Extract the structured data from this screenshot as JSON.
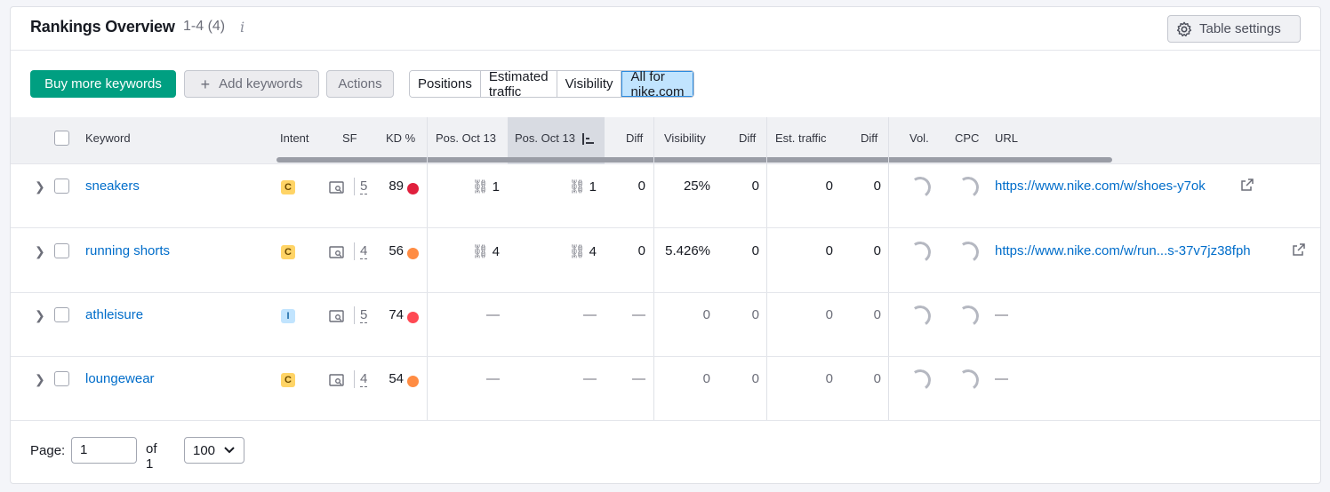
{
  "header": {
    "title": "Rankings Overview",
    "count": "1-4 (4)",
    "info": "i",
    "table_settings": "Table settings"
  },
  "toolbar": {
    "buy_more": "Buy more keywords",
    "add_keywords": "Add keywords",
    "actions": "Actions",
    "segments": [
      "Positions",
      "Estimated traffic",
      "Visibility",
      "All for nike.com"
    ],
    "active_segment": "All for nike.com"
  },
  "columns": {
    "keyword": "Keyword",
    "intent": "Intent",
    "sf": "SF",
    "kd": "KD %",
    "pos1": "Pos. Oct 13",
    "pos2": "Pos. Oct 13",
    "diff1": "Diff",
    "visibility": "Visibility",
    "diff2": "Diff",
    "est_traffic": "Est. traffic",
    "diff3": "Diff",
    "vol": "Vol.",
    "cpc": "CPC",
    "url": "URL"
  },
  "rows": [
    {
      "keyword": "sneakers",
      "intent": "C",
      "sf": "5",
      "kd": "89",
      "kd_color": "#e0203d",
      "pos1": "1",
      "pos2": "1",
      "diff1": "0",
      "visibility": "25%",
      "diff2": "0",
      "est_traffic": "0",
      "diff3": "0",
      "url": "https://www.nike.com/w/shoes-y7ok"
    },
    {
      "keyword": "running shorts",
      "intent": "C",
      "sf": "4",
      "kd": "56",
      "kd_color": "#ff8c43",
      "pos1": "4",
      "pos2": "4",
      "diff1": "0",
      "visibility": "5.426%",
      "diff2": "0",
      "est_traffic": "0",
      "diff3": "0",
      "url": "https://www.nike.com/w/run...s-37v7jz38fph"
    },
    {
      "keyword": "athleisure",
      "intent": "I",
      "sf": "5",
      "kd": "74",
      "kd_color": "#ff4953",
      "pos1": "—",
      "pos2": "—",
      "diff1": "—",
      "visibility": "0",
      "diff2": "0",
      "est_traffic": "0",
      "diff3": "0",
      "url": "—"
    },
    {
      "keyword": "loungewear",
      "intent": "C",
      "sf": "4",
      "kd": "54",
      "kd_color": "#ff8c43",
      "pos1": "—",
      "pos2": "—",
      "diff1": "—",
      "visibility": "0",
      "diff2": "0",
      "est_traffic": "0",
      "diff3": "0",
      "url": "—"
    }
  ],
  "footer": {
    "page_label": "Page:",
    "page_value": "1",
    "of_label": "of 1",
    "per_page": "100"
  }
}
